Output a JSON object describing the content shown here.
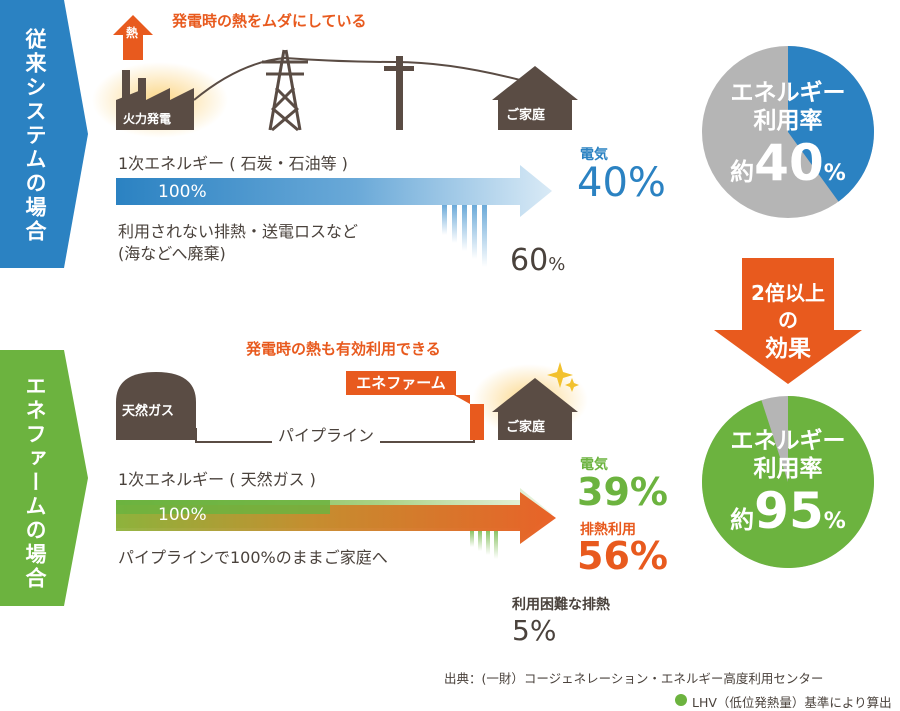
{
  "side_labels": {
    "conventional": "従来システムの場合",
    "enefarm": "エネファームの場合"
  },
  "conventional": {
    "heat_badge": "熱",
    "waste_note": "発電時の熱をムダにしている",
    "plant_label": "火力発電",
    "home_label": "ご家庭",
    "energy_label": "1次エネルギー ( 石炭・石油等 )",
    "input_pct": "100%",
    "loss_label_1": "利用されない排熱・送電ロスなど",
    "loss_label_2": "(海などへ廃棄)",
    "elec_label": "電気",
    "elec_value": "40%",
    "loss_value": "60",
    "loss_unit": "%"
  },
  "enefarm": {
    "use_note": "発電時の熱も有効利用できる",
    "gas_label": "天然ガス",
    "device_label": "エネファーム",
    "pipeline_label": "パイプライン",
    "home_label": "ご家庭",
    "energy_label": "1次エネルギー ( 天然ガス )",
    "input_pct": "100%",
    "delivery_label": "パイプラインで100%のままご家庭へ",
    "elec_label": "電気",
    "elec_value": "39%",
    "heat_label": "排熱利用",
    "heat_value": "56%",
    "loss_label": "利用困難な排熱",
    "loss_value": "5%"
  },
  "pies": {
    "top_title_1": "エネルギー",
    "top_title_2": "利用率",
    "top_prefix": "約",
    "top_value": "40",
    "top_unit": "%",
    "bottom_title_1": "エネルギー",
    "bottom_title_2": "利用率",
    "bottom_prefix": "約",
    "bottom_value": "95",
    "bottom_unit": "%"
  },
  "effect_arrow": {
    "line1": "2倍以上の",
    "line2": "効果"
  },
  "footer": {
    "source": "出典：(一財）コージェネレーション・エネルギー高度利用センター",
    "note": "LHV（低位発熱量）基準により算出"
  },
  "colors": {
    "blue": "#2b82c2",
    "green": "#6cb33f",
    "orange": "#e85a1e",
    "brown": "#5a4c44",
    "gray": "#b5b5b5"
  }
}
